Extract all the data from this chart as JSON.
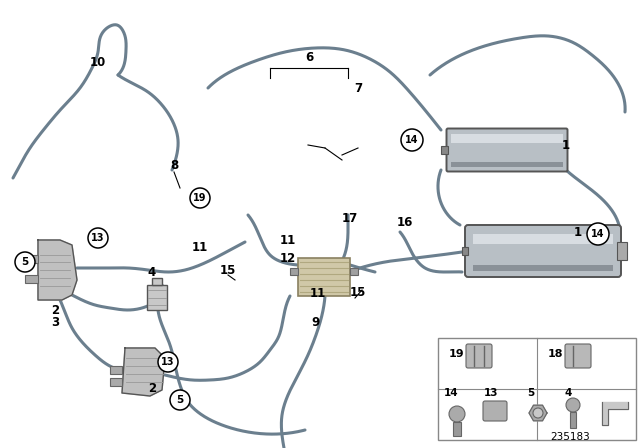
{
  "bg_color": "#ffffff",
  "line_color": "#6b7f8e",
  "label_color": "#000000",
  "circle_bg": "#ffffff",
  "circle_edge": "#000000",
  "tank_color": "#b8bfc5",
  "tank_highlight": "#d8dde2",
  "tank_shadow": "#8a9198",
  "diagram_id": "235183",
  "figure_width": 6.4,
  "figure_height": 4.48,
  "dpi": 100,
  "lw": 2.2
}
